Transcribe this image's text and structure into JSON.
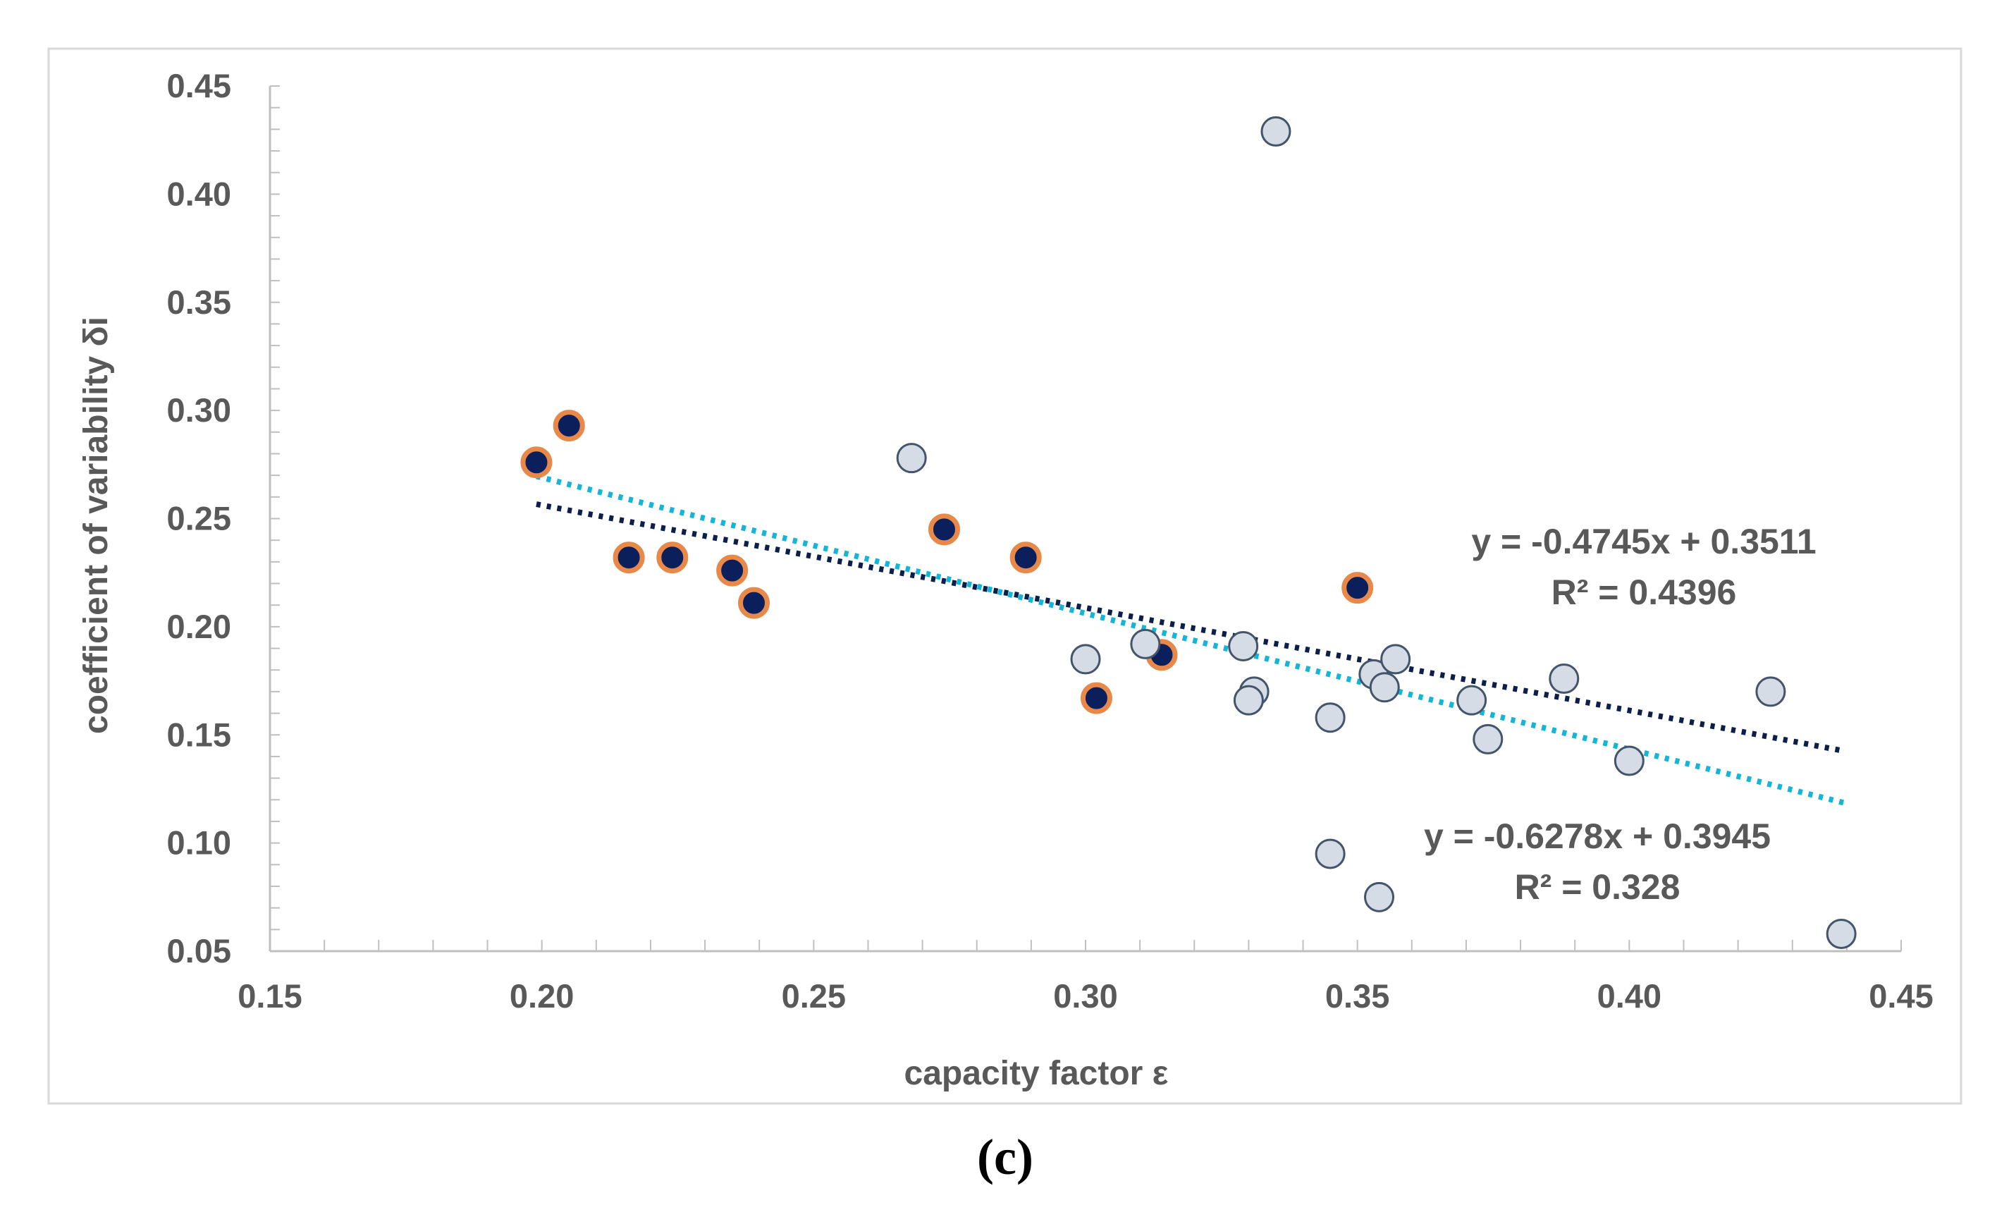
{
  "caption": "(c)",
  "chart_data": {
    "type": "scatter",
    "xlabel": "capacity factor ε",
    "ylabel": "coefficient of variability δi",
    "xlim": [
      0.15,
      0.45
    ],
    "ylim": [
      0.05,
      0.45
    ],
    "x_ticks": [
      "0.15",
      "0.20",
      "0.25",
      "0.30",
      "0.35",
      "0.40",
      "0.45"
    ],
    "y_ticks": [
      "0.05",
      "0.10",
      "0.15",
      "0.20",
      "0.25",
      "0.30",
      "0.35",
      "0.40",
      "0.45"
    ],
    "grid": false,
    "colors": {
      "dark_fill": "#0b1f5c",
      "dark_edge": "#e8894a",
      "light_fill": "#d6dce5",
      "light_edge": "#44546a",
      "trend_dark": "#0b1f4a",
      "trend_cyan": "#13b5d8",
      "text": "#595959"
    },
    "series": [
      {
        "style": "dark",
        "points": [
          [
            0.199,
            0.276
          ],
          [
            0.205,
            0.293
          ],
          [
            0.216,
            0.232
          ],
          [
            0.224,
            0.232
          ],
          [
            0.235,
            0.226
          ],
          [
            0.239,
            0.211
          ],
          [
            0.274,
            0.245
          ],
          [
            0.289,
            0.232
          ],
          [
            0.314,
            0.187
          ],
          [
            0.302,
            0.167
          ],
          [
            0.35,
            0.218
          ]
        ]
      },
      {
        "style": "light",
        "points": [
          [
            0.335,
            0.429
          ],
          [
            0.268,
            0.278
          ],
          [
            0.3,
            0.185
          ],
          [
            0.311,
            0.192
          ],
          [
            0.329,
            0.191
          ],
          [
            0.331,
            0.17
          ],
          [
            0.33,
            0.166
          ],
          [
            0.345,
            0.158
          ],
          [
            0.353,
            0.178
          ],
          [
            0.355,
            0.172
          ],
          [
            0.357,
            0.185
          ],
          [
            0.371,
            0.166
          ],
          [
            0.374,
            0.148
          ],
          [
            0.388,
            0.176
          ],
          [
            0.4,
            0.138
          ],
          [
            0.426,
            0.17
          ],
          [
            0.345,
            0.095
          ],
          [
            0.354,
            0.075
          ],
          [
            0.439,
            0.058
          ]
        ]
      }
    ],
    "trendlines": [
      {
        "color": "trend_dark",
        "slope": -0.4745,
        "intercept": 0.3511,
        "x_range": [
          0.199,
          0.439
        ],
        "equation": "y = -0.4745x + 0.3511",
        "r2": "R² = 0.4396"
      },
      {
        "color": "trend_cyan",
        "slope": -0.6278,
        "intercept": 0.3945,
        "x_range": [
          0.199,
          0.44
        ],
        "equation": "y = -0.6278x + 0.3945",
        "r2": "R² = 0.328"
      }
    ]
  }
}
